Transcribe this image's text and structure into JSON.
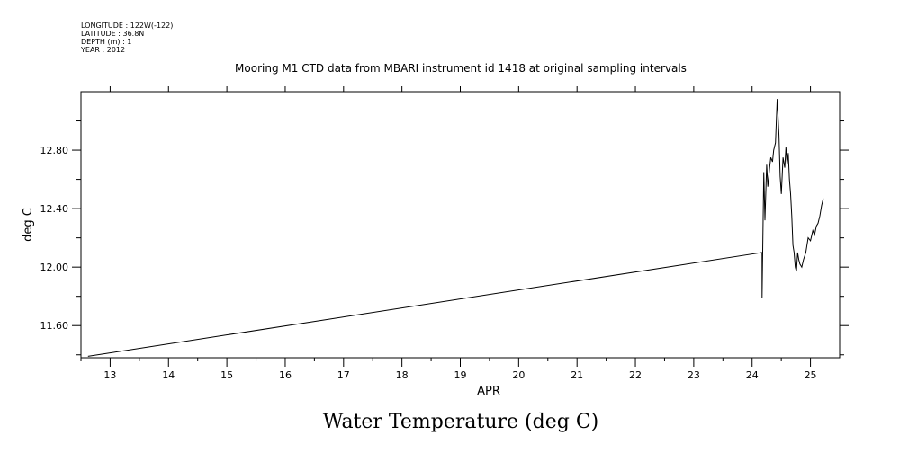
{
  "header": {
    "longitude": "LONGITUDE : 122W(-122)",
    "latitude": "LATITUDE : 36.8N",
    "depth": "DEPTH (m) : 1",
    "year": "YEAR : 2012"
  },
  "colors": {
    "line": "#000000",
    "axis": "#000000",
    "background": "#ffffff"
  },
  "chart_data": {
    "type": "line",
    "title": "Mooring M1 CTD data from MBARI instrument id 1418 at original sampling intervals",
    "xlabel": "APR",
    "ylabel": "deg C",
    "caption": "Water Temperature (deg C)",
    "xlim": [
      12.5,
      25.5
    ],
    "ylim": [
      11.38,
      13.2
    ],
    "x_ticks": [
      13,
      14,
      15,
      16,
      17,
      18,
      19,
      20,
      21,
      22,
      23,
      24,
      25
    ],
    "x_tick_labels": [
      "13",
      "14",
      "15",
      "16",
      "17",
      "18",
      "19",
      "20",
      "21",
      "22",
      "23",
      "24",
      "25"
    ],
    "y_ticks": [
      11.6,
      12.0,
      12.4,
      12.8
    ],
    "y_tick_labels": [
      "11.60",
      "12.00",
      "12.40",
      "12.80"
    ],
    "y_minor_ticks": [
      11.4,
      11.8,
      12.2,
      12.6,
      13.0
    ],
    "grid": false,
    "legend": "none",
    "series": [
      {
        "x": [
          12.62,
          24.17,
          24.17,
          24.2,
          24.22,
          24.25,
          24.27,
          24.3,
          24.32,
          24.35,
          24.37,
          24.4,
          24.43,
          24.46,
          24.48,
          24.5,
          24.53,
          24.56,
          24.58,
          24.6,
          24.62,
          24.64,
          24.66,
          24.68,
          24.7,
          24.72,
          24.74,
          24.76,
          24.78,
          24.8,
          24.82,
          24.85,
          24.88,
          24.92,
          24.96,
          25.0,
          25.04,
          25.07,
          25.1,
          25.13,
          25.16,
          25.19,
          25.22
        ],
        "y": [
          11.39,
          12.1,
          11.79,
          12.65,
          12.32,
          12.7,
          12.55,
          12.68,
          12.75,
          12.72,
          12.8,
          12.85,
          13.15,
          12.9,
          12.62,
          12.5,
          12.75,
          12.68,
          12.82,
          12.7,
          12.78,
          12.6,
          12.5,
          12.35,
          12.15,
          12.1,
          12.0,
          11.97,
          12.1,
          12.05,
          12.02,
          12.0,
          12.05,
          12.1,
          12.2,
          12.18,
          12.25,
          12.22,
          12.28,
          12.3,
          12.35,
          12.42,
          12.47
        ]
      }
    ]
  }
}
